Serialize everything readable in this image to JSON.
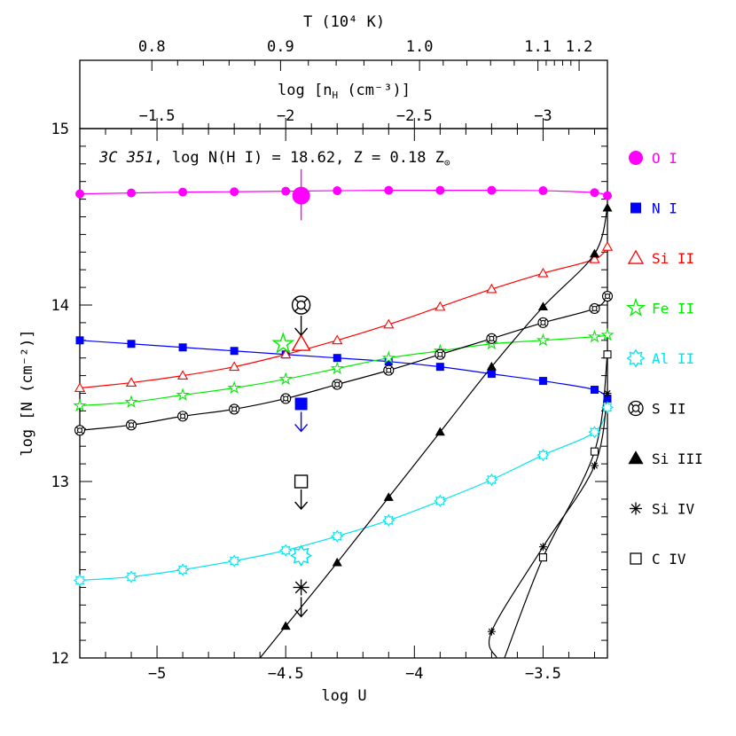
{
  "chart_data": {
    "type": "line",
    "title": {
      "object": "3C 351",
      "rest": ", log N(H I) = 18.62, Z = 0.18 Z",
      "sun_symbol": "⊙"
    },
    "xlabel": "log U",
    "ylabel": "log [N (cm⁻²)]",
    "top_temperature_label": "T (10⁴ K)",
    "top_density_label_prefix": "log [n",
    "top_density_label_sub": "H",
    "top_density_label_suffix": " (cm⁻³)]",
    "xlim": [
      -5.3,
      -3.25
    ],
    "ylim": [
      12,
      15
    ],
    "x_ticks": [
      {
        "v": -5,
        "label": "−5"
      },
      {
        "v": -4.5,
        "label": "−4.5"
      },
      {
        "v": -4,
        "label": "−4"
      },
      {
        "v": -3.5,
        "label": "−3.5"
      }
    ],
    "y_ticks": [
      {
        "v": 12,
        "label": "12"
      },
      {
        "v": 13,
        "label": "13"
      },
      {
        "v": 14,
        "label": "14"
      },
      {
        "v": 15,
        "label": "15"
      }
    ],
    "density_ticks": [
      {
        "v": -1.5,
        "label": "−1.5"
      },
      {
        "v": -2,
        "label": "−2"
      },
      {
        "v": -2.5,
        "label": "−2.5"
      },
      {
        "v": -3,
        "label": "−3"
      }
    ],
    "density_ticks_logU": [
      -5.0,
      -4.5,
      -4.0,
      -3.5
    ],
    "temperature_ticks": [
      {
        "logU": -5.02,
        "label": "0.8"
      },
      {
        "logU": -4.52,
        "label": "0.9"
      },
      {
        "logU": -3.98,
        "label": "1.0"
      },
      {
        "logU": -3.52,
        "label": "1.1"
      },
      {
        "logU": -3.36,
        "label": "1.2"
      }
    ],
    "series": [
      {
        "name": "O I",
        "key": "OI",
        "color": "#ff00ff",
        "marker": "circle",
        "x": [
          -5.3,
          -5.1,
          -4.9,
          -4.7,
          -4.5,
          -4.3,
          -4.1,
          -3.9,
          -3.7,
          -3.5,
          -3.3,
          -3.25
        ],
        "y": [
          14.63,
          14.635,
          14.64,
          14.642,
          14.645,
          14.648,
          14.65,
          14.65,
          14.65,
          14.648,
          14.637,
          14.62
        ]
      },
      {
        "name": "N I",
        "key": "NI",
        "color": "#0000ff",
        "marker": "square",
        "x": [
          -5.3,
          -5.1,
          -4.9,
          -4.7,
          -4.5,
          -4.3,
          -4.1,
          -3.9,
          -3.7,
          -3.5,
          -3.3,
          -3.25
        ],
        "y": [
          13.8,
          13.78,
          13.76,
          13.74,
          13.72,
          13.7,
          13.68,
          13.65,
          13.61,
          13.57,
          13.52,
          13.47
        ]
      },
      {
        "name": "Si II",
        "key": "SiII",
        "color": "#ff0000",
        "marker": "triangle-open",
        "x": [
          -5.3,
          -5.1,
          -4.9,
          -4.7,
          -4.5,
          -4.3,
          -4.1,
          -3.9,
          -3.7,
          -3.5,
          -3.3,
          -3.25
        ],
        "y": [
          13.53,
          13.56,
          13.6,
          13.65,
          13.72,
          13.8,
          13.89,
          13.99,
          14.09,
          14.18,
          14.26,
          14.33
        ]
      },
      {
        "name": "Fe II",
        "key": "FeII",
        "color": "#00ee00",
        "marker": "star-open",
        "x": [
          -5.3,
          -5.1,
          -4.9,
          -4.7,
          -4.5,
          -4.3,
          -4.1,
          -3.9,
          -3.7,
          -3.5,
          -3.3,
          -3.25
        ],
        "y": [
          13.43,
          13.45,
          13.49,
          13.53,
          13.58,
          13.64,
          13.7,
          13.74,
          13.78,
          13.8,
          13.82,
          13.83
        ]
      },
      {
        "name": "Al II",
        "key": "AlII",
        "color": "#00e5ee",
        "marker": "sun-open",
        "x": [
          -5.3,
          -5.1,
          -4.9,
          -4.7,
          -4.5,
          -4.3,
          -4.1,
          -3.9,
          -3.7,
          -3.5,
          -3.3,
          -3.25
        ],
        "y": [
          12.44,
          12.46,
          12.5,
          12.55,
          12.61,
          12.69,
          12.78,
          12.89,
          13.01,
          13.15,
          13.28,
          13.42
        ]
      },
      {
        "name": "S II",
        "key": "SII",
        "color": "#000000",
        "marker": "circle-cross",
        "x": [
          -5.3,
          -5.1,
          -4.9,
          -4.7,
          -4.5,
          -4.3,
          -4.1,
          -3.9,
          -3.7,
          -3.5,
          -3.3,
          -3.25
        ],
        "y": [
          13.29,
          13.32,
          13.37,
          13.41,
          13.47,
          13.55,
          13.63,
          13.72,
          13.81,
          13.9,
          13.98,
          14.05
        ]
      },
      {
        "name": "Si III",
        "key": "SiIII",
        "color": "#000000",
        "marker": "triangle-filled",
        "x": [
          -4.6,
          -4.5,
          -4.3,
          -4.1,
          -3.9,
          -3.7,
          -3.5,
          -3.3,
          -3.25
        ],
        "y": [
          12.0,
          12.18,
          12.54,
          12.91,
          13.28,
          13.65,
          13.99,
          14.29,
          14.55
        ]
      },
      {
        "name": "Si IV",
        "key": "SiIV",
        "color": "#000000",
        "marker": "asterisk",
        "x": [
          -3.68,
          -3.7,
          -3.5,
          -3.3,
          -3.25
        ],
        "y": [
          12.0,
          12.15,
          12.63,
          13.09,
          13.5
        ]
      },
      {
        "name": "C IV",
        "key": "CIV",
        "color": "#000000",
        "marker": "square-open",
        "x": [
          -3.65,
          -3.5,
          -3.3,
          -3.25
        ],
        "y": [
          12.0,
          12.57,
          13.17,
          13.72
        ]
      }
    ],
    "observations": [
      {
        "ion": "OI",
        "x": -4.44,
        "y": 14.62,
        "type": "detection",
        "err_low": 14.48,
        "err_high": 14.77
      },
      {
        "ion": "NI",
        "x": -4.44,
        "y": 13.44,
        "type": "upper_limit"
      },
      {
        "ion": "SiII",
        "x": -4.44,
        "y": 13.78,
        "type": "detection"
      },
      {
        "ion": "FeII",
        "x": -4.51,
        "y": 13.78,
        "type": "detection"
      },
      {
        "ion": "AlII",
        "x": -4.44,
        "y": 12.58,
        "type": "detection"
      },
      {
        "ion": "SII",
        "x": -4.44,
        "y": 14.0,
        "type": "upper_limit"
      },
      {
        "ion": "CIV",
        "x": -4.44,
        "y": 13.0,
        "type": "upper_limit"
      },
      {
        "ion": "SiIV",
        "x": -4.44,
        "y": 12.4,
        "type": "upper_limit"
      }
    ],
    "legend_placement": "right",
    "grid": false
  }
}
